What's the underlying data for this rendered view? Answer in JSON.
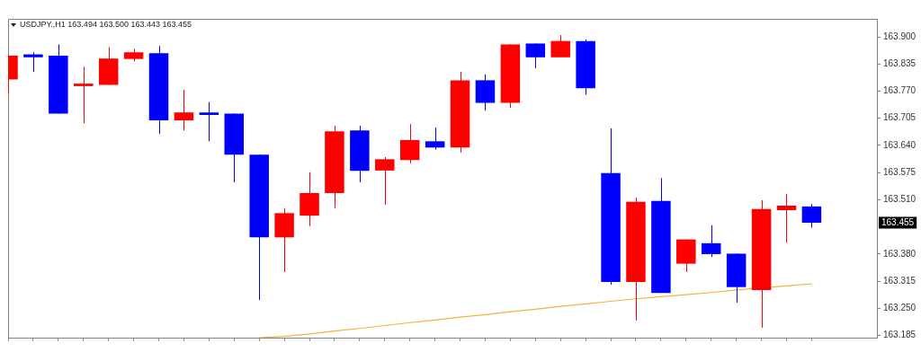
{
  "chart_data": {
    "type": "candlestick",
    "title": "USDJPY.,H1 163.494 163.500 163.443 163.455",
    "categories": [
      null,
      null,
      null,
      null,
      null,
      null,
      null,
      null,
      null,
      null,
      null,
      null,
      null,
      null,
      null,
      null,
      null,
      null,
      null,
      null,
      null,
      null,
      null,
      null,
      null,
      null,
      null,
      null,
      null,
      null,
      null,
      null,
      null
    ],
    "ohlc": [
      [
        163.798,
        163.855,
        163.764,
        163.855
      ],
      [
        163.858,
        163.863,
        163.816,
        163.851
      ],
      [
        163.855,
        163.882,
        163.716,
        163.716
      ],
      [
        163.782,
        163.828,
        163.693,
        163.788
      ],
      [
        163.785,
        163.875,
        163.785,
        163.848
      ],
      [
        163.847,
        163.871,
        163.841,
        163.863
      ],
      [
        163.861,
        163.878,
        163.668,
        163.7
      ],
      [
        163.7,
        163.773,
        163.676,
        163.719
      ],
      [
        163.719,
        163.744,
        163.65,
        163.713
      ],
      [
        163.716,
        163.716,
        163.552,
        163.618
      ],
      [
        163.618,
        163.618,
        163.27,
        163.42
      ],
      [
        163.42,
        163.49,
        163.337,
        163.478
      ],
      [
        163.472,
        163.576,
        163.447,
        163.526
      ],
      [
        163.526,
        163.687,
        163.49,
        163.674
      ],
      [
        163.676,
        163.687,
        163.552,
        163.579
      ],
      [
        163.58,
        163.612,
        163.498,
        163.607
      ],
      [
        163.605,
        163.691,
        163.597,
        163.653
      ],
      [
        163.65,
        163.683,
        163.63,
        163.635
      ],
      [
        163.635,
        163.816,
        163.623,
        163.796
      ],
      [
        163.796,
        163.81,
        163.723,
        163.742
      ],
      [
        163.742,
        163.882,
        163.73,
        163.882
      ],
      [
        163.884,
        163.884,
        163.825,
        163.851
      ],
      [
        163.851,
        163.904,
        163.851,
        163.89
      ],
      [
        163.89,
        163.894,
        163.761,
        163.777
      ],
      [
        163.574,
        163.681,
        163.307,
        163.313
      ],
      [
        163.313,
        163.515,
        163.221,
        163.505
      ],
      [
        163.507,
        163.562,
        163.287,
        163.287
      ],
      [
        163.357,
        163.415,
        163.337,
        163.415
      ],
      [
        163.406,
        163.449,
        163.373,
        163.38
      ],
      [
        163.381,
        163.381,
        163.264,
        163.301
      ],
      [
        163.294,
        163.509,
        163.204,
        163.488
      ],
      [
        163.485,
        163.524,
        163.407,
        163.496
      ],
      [
        163.494,
        163.5,
        163.443,
        163.455
      ]
    ],
    "colors": [
      "#ff0000",
      "#0000ff",
      "#0000ff",
      "#ff0000",
      "#ff0000",
      "#ff0000",
      "#0000ff",
      "#ff0000",
      "#0000ff",
      "#0000ff",
      "#0000ff",
      "#ff0000",
      "#ff0000",
      "#ff0000",
      "#0000ff",
      "#ff0000",
      "#ff0000",
      "#0000ff",
      "#ff0000",
      "#0000ff",
      "#ff0000",
      "#0000ff",
      "#ff0000",
      "#0000ff",
      "#0000ff",
      "#ff0000",
      "#0000ff",
      "#ff0000",
      "#0000ff",
      "#0000ff",
      "#ff0000",
      "#ff0000",
      "#0000ff"
    ],
    "series": [
      {
        "type": "line",
        "color": "#f4b042",
        "values": [
          null,
          null,
          null,
          null,
          null,
          null,
          null,
          null,
          null,
          null,
          163.18,
          163.183,
          163.189,
          163.196,
          163.202,
          163.209,
          163.216,
          163.222,
          163.229,
          163.235,
          163.242,
          163.248,
          163.255,
          163.261,
          163.267,
          163.273,
          163.278,
          163.283,
          163.288,
          163.294,
          null,
          163.304,
          163.309
        ]
      }
    ],
    "ylim": [
      163.18,
      163.943
    ],
    "yticks": [
      {
        "value": 163.9,
        "label": "163.900"
      },
      163.835,
      {
        "value": 163.77,
        "label": "163.770"
      },
      163.705,
      {
        "value": 163.64,
        "label": "163.640"
      },
      163.575,
      {
        "value": 163.51,
        "label": "163.510"
      },
      {
        "value": 163.38,
        "label": "163.380"
      },
      163.315,
      {
        "value": 163.25,
        "label": "163.250"
      },
      163.185
    ],
    "tick_labels": "y",
    "annotations": [
      "163.455"
    ]
  }
}
